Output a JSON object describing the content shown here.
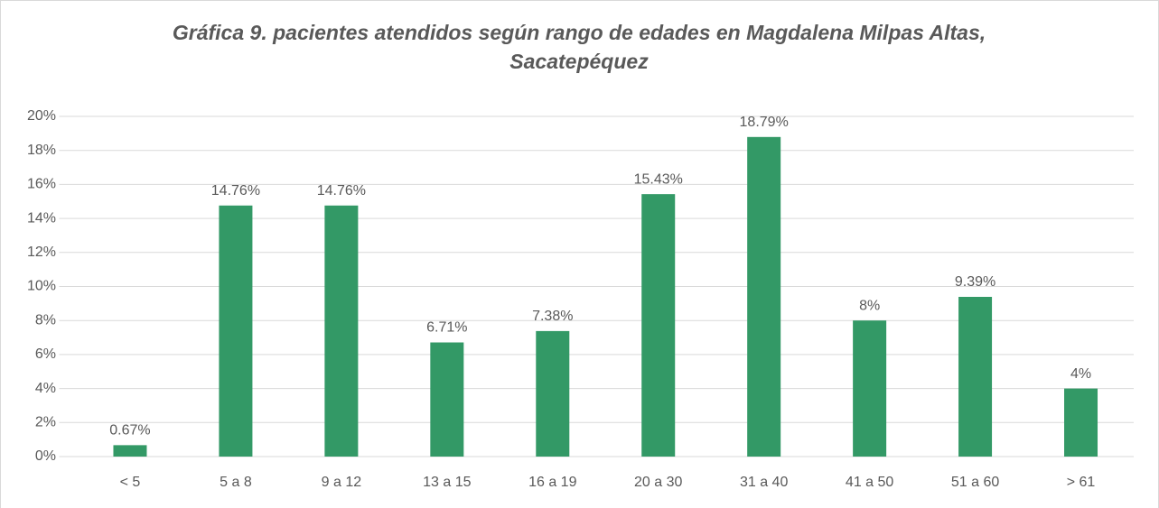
{
  "chart_data": {
    "type": "bar",
    "title": "Gráfica 9.  pacientes atendidos según rango de edades en Magdalena Milpas Altas, Sacatepéquez",
    "categories": [
      "< 5",
      "5 a 8",
      "9 a 12",
      "13 a 15",
      "16 a 19",
      "20 a 30",
      "31 a 40",
      "41 a 50",
      "51 a 60",
      "> 61"
    ],
    "values": [
      0.67,
      14.76,
      14.76,
      6.71,
      7.38,
      15.43,
      18.79,
      8,
      9.39,
      4
    ],
    "value_labels": [
      "0.67%",
      "14.76%",
      "14.76%",
      "6.71%",
      "7.38%",
      "15.43%",
      "18.79%",
      "8%",
      "9.39%",
      "4%"
    ],
    "color": "#339966",
    "ylim": [
      0,
      20
    ],
    "yticks": [
      {
        "value": 0,
        "label": "0%"
      },
      {
        "value": 2,
        "label": "2%"
      },
      {
        "value": 4,
        "label": "4%"
      },
      {
        "value": 6,
        "label": "6%"
      },
      {
        "value": 8,
        "label": "8%"
      },
      {
        "value": 10,
        "label": "10%"
      },
      {
        "value": 12,
        "label": "12%"
      },
      {
        "value": 14,
        "label": "14%"
      },
      {
        "value": 16,
        "label": "16%"
      },
      {
        "value": 18,
        "label": "18%"
      },
      {
        "value": 20,
        "label": "20%"
      }
    ],
    "grid": true
  }
}
